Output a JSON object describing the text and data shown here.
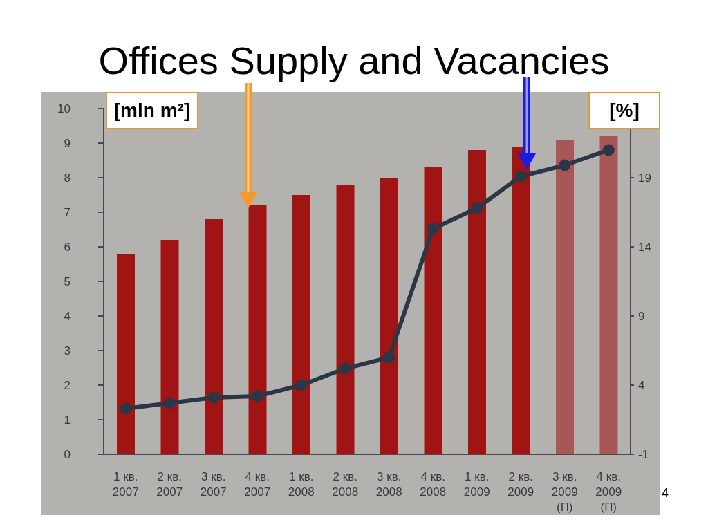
{
  "chart_data": {
    "type": "bar",
    "title": "Offices Supply and Vacancies",
    "ylabel": "[mln m²]",
    "y2label": "[%]",
    "categories": [
      "1 кв. 2007",
      "2 кв. 2007",
      "3 кв. 2007",
      "4 кв. 2007",
      "1 кв. 2008",
      "2 кв. 2008",
      "3 кв. 2008",
      "4 кв. 2008",
      "1 кв. 2009",
      "2 кв. 2009",
      "3 кв. 2009 (П)",
      "4 кв. 2009 (П)"
    ],
    "series": [
      {
        "color": "#a01414",
        "colors": [
          "#a01414",
          "#a01414",
          "#a01414",
          "#a01414",
          "#a01414",
          "#a01414",
          "#a01414",
          "#a01414",
          "#a01414",
          "#a01414",
          "#a85656",
          "#a85656"
        ],
        "values": [
          5.8,
          6.2,
          6.8,
          7.2,
          7.5,
          7.8,
          8.0,
          8.3,
          8.8,
          8.9,
          9.1,
          9.2
        ]
      },
      {
        "type": "line",
        "axis": "y2",
        "color": "#2b3747",
        "values": [
          2.3,
          2.7,
          3.1,
          3.2,
          4.0,
          5.2,
          6.0,
          15.3,
          16.8,
          19.1,
          19.9,
          21.0
        ]
      }
    ],
    "ylim": [
      0,
      10
    ],
    "yticks": [
      0,
      1,
      2,
      3,
      4,
      5,
      6,
      7,
      8,
      9,
      10
    ],
    "y2lim": [
      -1,
      24
    ],
    "y2ticks": [
      -1,
      4,
      9,
      14,
      19
    ],
    "marker": "circle",
    "line_style": "solid",
    "annotations": [
      "4"
    ]
  }
}
